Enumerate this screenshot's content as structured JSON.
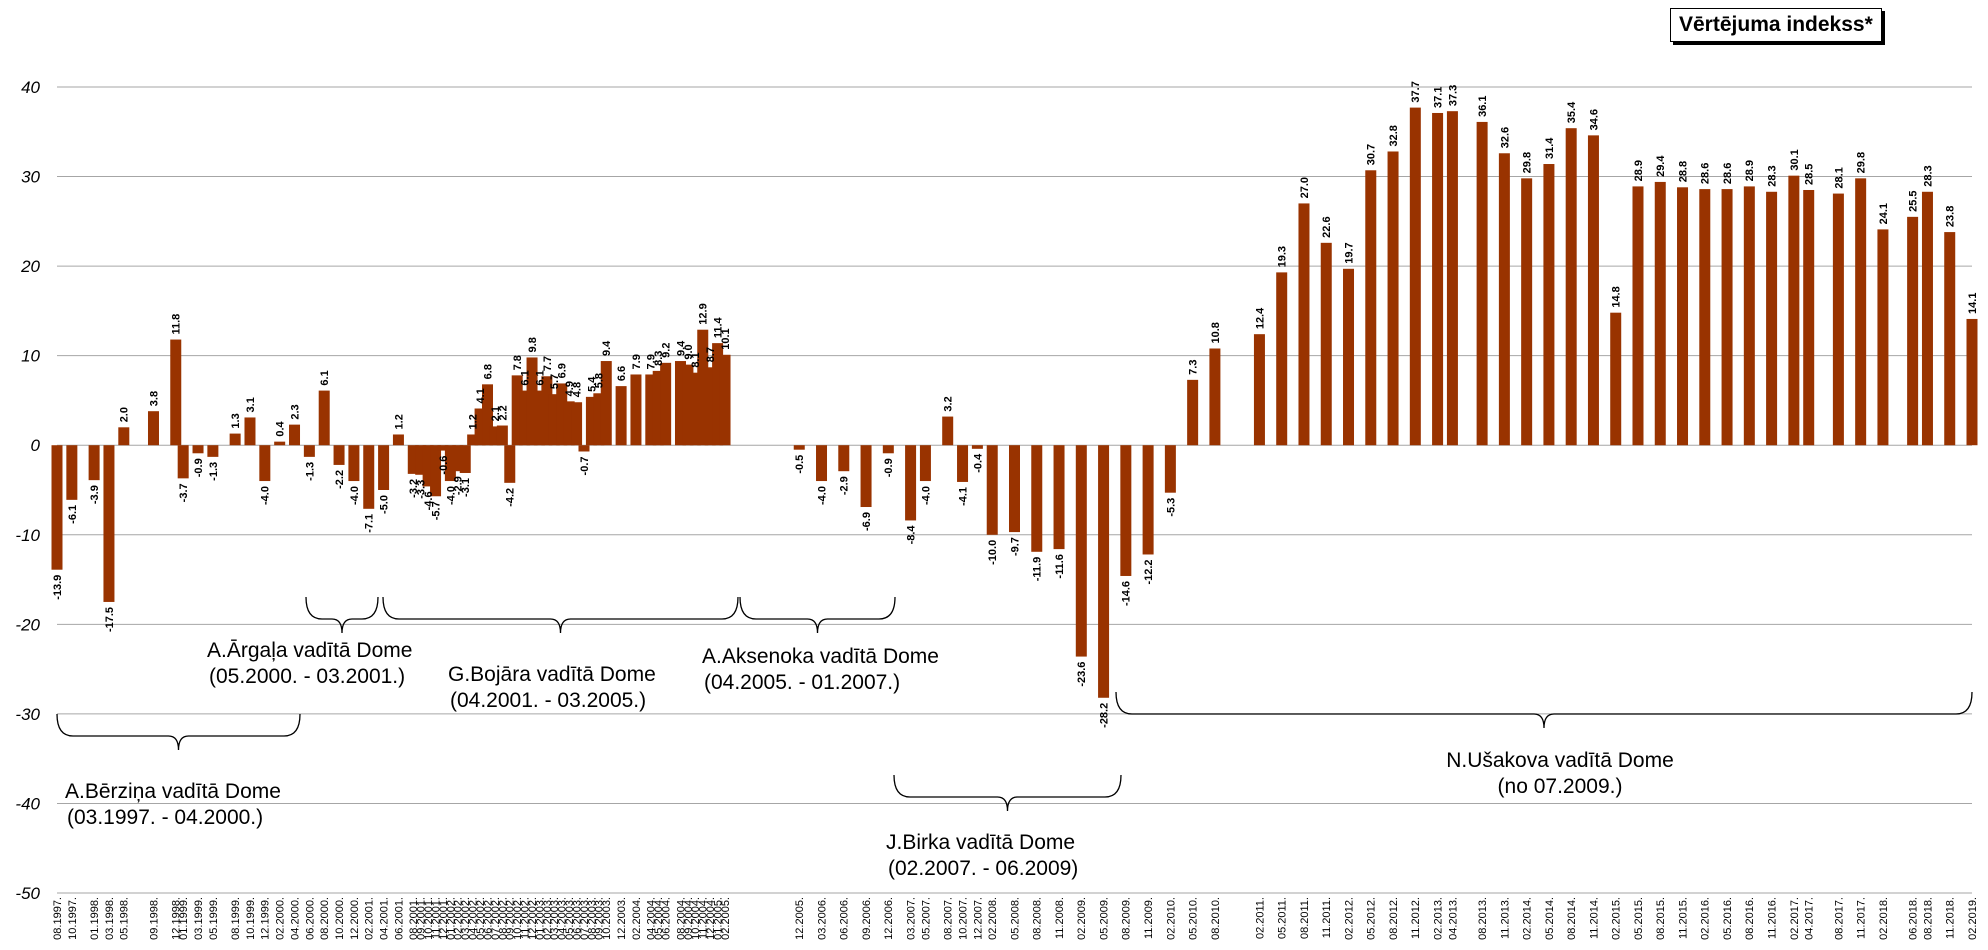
{
  "legend": "Vērtējuma indekss*",
  "colors": {
    "bar": "#993300",
    "grid": "#a6a6a6",
    "text": "#000000"
  },
  "chart_data": {
    "type": "bar",
    "title": "",
    "xlabel": "",
    "ylabel": "",
    "ylim": [
      -50,
      40
    ],
    "grid": "horizontal",
    "legend_position": "top-right",
    "yticks": [
      "40",
      "30",
      "20",
      "10",
      "0",
      "-10",
      "-20",
      "-30",
      "-40",
      "-50"
    ],
    "categories": [
      "08.1997.",
      "10.1997.",
      "01.1998.",
      "03.1998.",
      "05.1998.",
      "09.1998.",
      "12.1998.",
      "01.1999.",
      "03.1999.",
      "05.1999.",
      "08.1999.",
      "10.1999.",
      "12.1999.",
      "02.2000.",
      "04.2000.",
      "06.2000.",
      "08.2000.",
      "10.2000.",
      "12.2000.",
      "02.2001.",
      "04.2001.",
      "06.2001.",
      "08.2001.",
      "09.2001.",
      "10.2001.",
      "11.2001.",
      "12.2001.",
      "01.2002.",
      "02.2002.",
      "03.2002.",
      "04.2002.",
      "05.2002.",
      "06.2002.",
      "07.2002.",
      "08.2002.",
      "09.2002.",
      "10.2002.",
      "11.2002.",
      "12.2002.",
      "01.2003.",
      "02.2003.",
      "03.2003.",
      "04.2003.",
      "05.2003.",
      "06.2003.",
      "07.2003.",
      "08.2003.",
      "09.2003.",
      "10.2003.",
      "12.2003.",
      "02.2004.",
      "04.2004.",
      "05.2004.",
      "06.2004.",
      "08.2004.",
      "09.2004.",
      "10.2004.",
      "11.2004.",
      "12.2004.",
      "01.2005.",
      "02.2005.",
      "12.2005.",
      "03.2006.",
      "06.2006.",
      "09.2006.",
      "12.2006.",
      "03.2007.",
      "05.2007.",
      "08.2007.",
      "10.2007.",
      "12.2007.",
      "02.2008.",
      "05.2008.",
      "08.2008.",
      "11.2008.",
      "02.2009.",
      "05.2009.",
      "08.2009.",
      "11.2009.",
      "02.2010.",
      "05.2010.",
      "08.2010.",
      "02.2011.",
      "05.2011.",
      "08.2011.",
      "11.2011.",
      "02.2012.",
      "05.2012.",
      "08.2012.",
      "11.2012.",
      "02.2013.",
      "04.2013.",
      "08.2013.",
      "11.2013.",
      "02.2014.",
      "05.2014.",
      "08.2014.",
      "11.2014.",
      "02.2015.",
      "05.2015.",
      "08.2015.",
      "11.2015.",
      "02.2016.",
      "05.2016.",
      "08.2016.",
      "11.2016.",
      "02.2017.",
      "04.2017.",
      "08.2017.",
      "11.2017.",
      "02.2018.",
      "06.2018.",
      "08.2018.",
      "11.2018.",
      "02.2019."
    ],
    "values": [
      -13.9,
      -6.1,
      -3.9,
      -17.5,
      2.0,
      3.8,
      11.8,
      -3.7,
      -0.9,
      -1.3,
      1.3,
      3.1,
      -4.0,
      0.4,
      2.3,
      -1.3,
      6.1,
      -2.2,
      -4.0,
      -7.1,
      -5.0,
      1.2,
      -3.2,
      -3.3,
      -4.6,
      -5.7,
      -0.6,
      -4.0,
      -2.9,
      -3.1,
      1.2,
      4.1,
      6.8,
      2.1,
      2.2,
      -4.2,
      7.8,
      6.1,
      9.8,
      6.1,
      7.7,
      5.7,
      6.9,
      4.9,
      4.8,
      -0.7,
      5.4,
      5.8,
      9.4,
      6.6,
      7.9,
      7.9,
      8.3,
      9.2,
      9.4,
      9.0,
      8.1,
      12.9,
      8.7,
      11.4,
      10.1,
      -0.5,
      -4.0,
      -2.9,
      -6.9,
      -0.9,
      -8.4,
      -4.0,
      3.2,
      -4.1,
      -0.4,
      -10.0,
      -9.7,
      -11.9,
      -11.6,
      -23.6,
      -28.2,
      -14.6,
      -12.2,
      -5.3,
      7.3,
      10.8,
      12.4,
      19.3,
      27.0,
      22.6,
      19.7,
      30.7,
      32.8,
      37.7,
      37.1,
      37.3,
      36.1,
      32.6,
      29.8,
      31.4,
      35.4,
      34.6,
      14.8,
      28.9,
      29.4,
      28.8,
      28.6,
      28.6,
      28.9,
      28.3,
      30.1,
      28.5,
      28.1,
      29.8,
      24.1,
      25.5,
      28.3,
      23.8,
      14.1
    ],
    "labels": [
      "-13.9",
      "-6.1",
      "-3.9",
      "-17.5",
      "2.0",
      "3.8",
      "11.8",
      "-3.7",
      "-0.9",
      "-1.3",
      "1.3",
      "3.1",
      "-4.0",
      "0.4",
      "2.3",
      "-1.3",
      "6.1",
      "-2.2",
      "-4.0",
      "-7.1",
      "-5.0",
      "1.2",
      "-3.2",
      "-3.3",
      "-4.6",
      "-5.7",
      "-0.6",
      "-4.0",
      "-2.9",
      "-3.1",
      "1.2",
      "4.1",
      "6.8",
      "2.1",
      "2.2",
      "-4.2",
      "7.8",
      "6.1",
      "9.8",
      "6.1",
      "7.7",
      "5.7",
      "6.9",
      "4.9",
      "4.8",
      "-0.7",
      "5.4",
      "5.8",
      "9.4",
      "6.6",
      "7.9",
      "7.9",
      "8.3",
      "9.2",
      "9.4",
      "9.0",
      "8.1",
      "12.9",
      "8.7",
      "11.4",
      "10.1",
      "-0.5",
      "-4.0",
      "-2.9",
      "-6.9",
      "-0.9",
      "-8.4",
      "-4.0",
      "3.2",
      "-4.1",
      "-0.4",
      "-10.0",
      "-9.7",
      "-11.9",
      "-11.6",
      "-23.6",
      "-28.2",
      "-14.6",
      "-12.2",
      "-5.3",
      "7.3",
      "10.8",
      "12.4",
      "19.3",
      "27.0",
      "22.6",
      "19.7",
      "30.7",
      "32.8",
      "37.7",
      "37.1",
      "37.3",
      "36.1",
      "32.6",
      "29.8",
      "31.4",
      "35.4",
      "34.6",
      "14.8",
      "28.9",
      "29.4",
      "28.8",
      "28.6",
      "28.6",
      "28.9",
      "28.3",
      "30.1",
      "28.5",
      "28.1",
      "29.8",
      "24.1",
      "25.5",
      "28.3",
      "23.8",
      "14.1"
    ],
    "periods": [
      {
        "name": "A.Bērziņa vadītā Dome",
        "dates": "(03.1997. - 04.2000.)",
        "from": "08.1997.",
        "to": "04.2000."
      },
      {
        "name": "A.Ārgaļa vadītā Dome",
        "dates": "(05.2000. - 03.2001.)",
        "from": "06.2000.",
        "to": "02.2001."
      },
      {
        "name": "G.Bojāra vadītā Dome",
        "dates": "(04.2001. - 03.2005.)",
        "from": "04.2001.",
        "to": "02.2005."
      },
      {
        "name": "A.Aksenoka vadītā Dome",
        "dates": "(04.2005. - 01.2007.)",
        "from": "12.2005.",
        "to": "12.2006."
      },
      {
        "name": "J.Birka vadītā Dome",
        "dates": "(02.2007. - 06.2009)",
        "from": "03.2007.",
        "to": "05.2009."
      },
      {
        "name": "N.Ušakova vadītā Dome",
        "dates": "(no 07.2009.)",
        "from": "08.2009.",
        "to": "02.2019."
      }
    ]
  }
}
